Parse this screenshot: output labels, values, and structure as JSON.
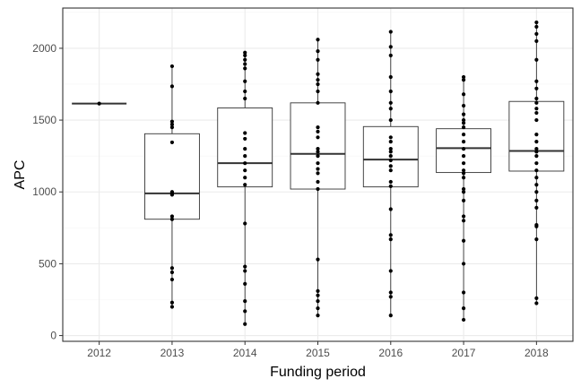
{
  "chart_data": {
    "type": "box",
    "title": "",
    "xlabel": "Funding period",
    "ylabel": "APC",
    "categories": [
      "2012",
      "2013",
      "2014",
      "2015",
      "2016",
      "2017",
      "2018"
    ],
    "ylim": [
      -40,
      2280
    ],
    "yticks": [
      0,
      500,
      1000,
      1500,
      2000
    ],
    "grid": true,
    "theme": "black-and-white",
    "colors": {
      "background": "#ffffff",
      "grid_major": "#ebebeb",
      "grid_minor": "#f5f5f5",
      "border": "#333333",
      "box": "#333333",
      "points": "#000000"
    },
    "boxes": [
      {
        "category": "2012",
        "min": 1615,
        "q1": 1615,
        "median": 1615,
        "q3": 1615,
        "max": 1615
      },
      {
        "category": "2013",
        "min": 200,
        "q1": 810,
        "median": 990,
        "q3": 1405,
        "max": 1875
      },
      {
        "category": "2014",
        "min": 80,
        "q1": 1035,
        "median": 1200,
        "q3": 1585,
        "max": 1970
      },
      {
        "category": "2015",
        "min": 140,
        "q1": 1020,
        "median": 1265,
        "q3": 1620,
        "max": 2060
      },
      {
        "category": "2016",
        "min": 140,
        "q1": 1035,
        "median": 1225,
        "q3": 1455,
        "max": 2115
      },
      {
        "category": "2017",
        "min": 110,
        "q1": 1135,
        "median": 1305,
        "q3": 1440,
        "max": 1800
      },
      {
        "category": "2018",
        "min": 225,
        "q1": 1145,
        "median": 1285,
        "q3": 1630,
        "max": 2180
      }
    ],
    "points": [
      {
        "category": "2012",
        "values": [
          1615
        ]
      },
      {
        "category": "2013",
        "values": [
          1875,
          1735,
          1490,
          1470,
          1450,
          1345,
          1000,
          990,
          980,
          830,
          810,
          470,
          440,
          390,
          230,
          200
        ]
      },
      {
        "category": "2014",
        "values": [
          1970,
          1950,
          1920,
          1890,
          1860,
          1770,
          1700,
          1650,
          1410,
          1370,
          1300,
          1250,
          1200,
          1150,
          1100,
          1050,
          780,
          480,
          450,
          360,
          240,
          170,
          80
        ]
      },
      {
        "category": "2015",
        "values": [
          2060,
          1980,
          1920,
          1820,
          1780,
          1750,
          1700,
          1620,
          1450,
          1420,
          1380,
          1300,
          1280,
          1250,
          1200,
          1160,
          1130,
          1070,
          1020,
          530,
          310,
          280,
          240,
          190,
          140
        ]
      },
      {
        "category": "2016",
        "values": [
          2115,
          2010,
          1950,
          1800,
          1700,
          1620,
          1580,
          1500,
          1380,
          1350,
          1300,
          1280,
          1250,
          1220,
          1180,
          1150,
          1070,
          1040,
          880,
          700,
          670,
          450,
          300,
          270,
          140
        ]
      },
      {
        "category": "2017",
        "values": [
          1800,
          1780,
          1680,
          1600,
          1540,
          1500,
          1480,
          1450,
          1400,
          1350,
          1300,
          1250,
          1200,
          1150,
          1130,
          1100,
          1020,
          1000,
          940,
          830,
          800,
          660,
          500,
          300,
          190,
          110
        ]
      },
      {
        "category": "2018",
        "values": [
          2180,
          2150,
          2100,
          2050,
          1920,
          1770,
          1720,
          1650,
          1620,
          1580,
          1550,
          1500,
          1400,
          1350,
          1300,
          1280,
          1250,
          1200,
          1150,
          1100,
          1050,
          1000,
          940,
          890,
          770,
          760,
          670,
          260,
          225
        ]
      }
    ]
  }
}
